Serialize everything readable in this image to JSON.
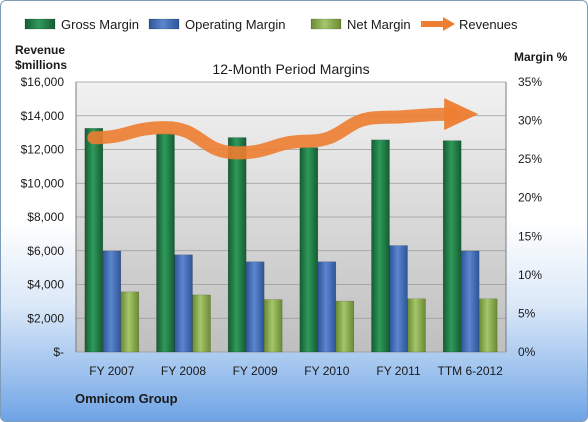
{
  "chart_data": {
    "type": "bar",
    "title": "12-Month Period Margins",
    "company": "Omnicom Group",
    "y_left_label": [
      "Revenue",
      "$millions"
    ],
    "y_right_label": "Margin %",
    "y_left_range": [
      0,
      16000
    ],
    "y_right_range": [
      0,
      35
    ],
    "y_left_ticks": [
      "$-",
      "$2,000",
      "$4,000",
      "$6,000",
      "$8,000",
      "$10,000",
      "$12,000",
      "$14,000",
      "$16,000"
    ],
    "y_right_ticks": [
      "0%",
      "5%",
      "10%",
      "15%",
      "20%",
      "25%",
      "30%",
      "35%"
    ],
    "categories": [
      "FY 2007",
      "FY 2008",
      "FY 2009",
      "FY 2010",
      "FY 2011",
      "TTM 6-2012"
    ],
    "series": [
      {
        "name": "Gross Margin",
        "axis": "right",
        "color": "#1e7a45",
        "values": [
          29.0,
          28.3,
          27.8,
          26.5,
          27.5,
          27.4
        ]
      },
      {
        "name": "Operating Margin",
        "axis": "right",
        "color": "#4472c4",
        "values": [
          13.1,
          12.6,
          11.7,
          11.7,
          13.8,
          13.1
        ]
      },
      {
        "name": "Net Margin",
        "axis": "right",
        "color": "#8db04b",
        "values": [
          7.8,
          7.4,
          6.8,
          6.6,
          6.9,
          6.9
        ]
      },
      {
        "name": "Revenues",
        "axis": "left",
        "type": "line",
        "color": "#ed7d31",
        "values": [
          12700,
          13300,
          11800,
          12500,
          13900,
          14100
        ]
      }
    ],
    "legend_position": "top"
  }
}
